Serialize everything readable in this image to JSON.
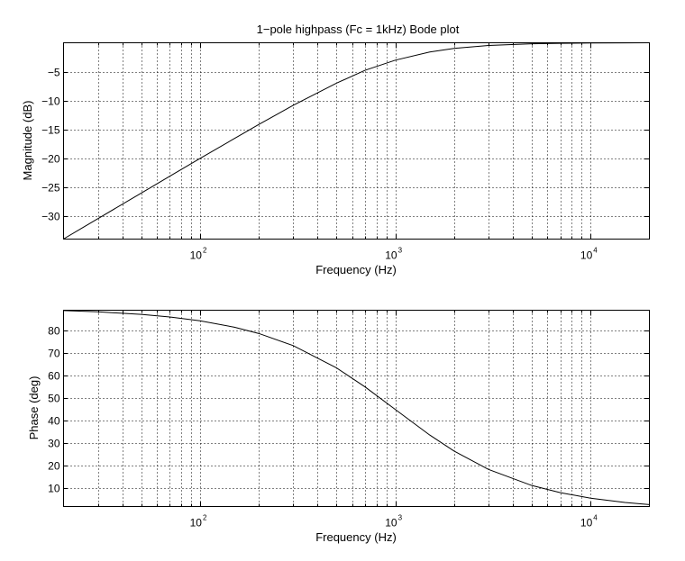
{
  "chart_data": [
    {
      "type": "line",
      "title": "1−pole highpass (Fc = 1kHz) Bode plot",
      "xlabel": "Frequency (Hz)",
      "ylabel": "Magnitude (dB)",
      "xscale": "log",
      "xlim": [
        20,
        20000
      ],
      "ylim": [
        -34,
        0
      ],
      "grid": true,
      "x_ticks": [
        {
          "value": 100,
          "base": "10",
          "exp": "2"
        },
        {
          "value": 1000,
          "base": "10",
          "exp": "3"
        },
        {
          "value": 10000,
          "base": "10",
          "exp": "4"
        }
      ],
      "y_ticks": [
        {
          "value": -5,
          "label": "−5"
        },
        {
          "value": -10,
          "label": "−10"
        },
        {
          "value": -15,
          "label": "−15"
        },
        {
          "value": -20,
          "label": "−20"
        },
        {
          "value": -25,
          "label": "−25"
        },
        {
          "value": -30,
          "label": "−30"
        }
      ],
      "series": [
        {
          "x": [
            20,
            30,
            50,
            70,
            100,
            150,
            200,
            300,
            500,
            700,
            1000,
            1500,
            2000,
            3000,
            5000,
            7000,
            10000,
            15000,
            20000
          ],
          "y": [
            -33.98,
            -30.46,
            -26.03,
            -23.11,
            -20.04,
            -16.58,
            -14.15,
            -10.83,
            -6.99,
            -4.77,
            -3.01,
            -1.6,
            -0.97,
            -0.46,
            -0.17,
            -0.09,
            -0.04,
            -0.02,
            -0.01
          ]
        }
      ]
    },
    {
      "type": "line",
      "title": "",
      "xlabel": "Frequency (Hz)",
      "ylabel": "Phase (deg)",
      "xscale": "log",
      "xlim": [
        20,
        20000
      ],
      "ylim": [
        2,
        89
      ],
      "grid": true,
      "x_ticks": [
        {
          "value": 100,
          "base": "10",
          "exp": "2"
        },
        {
          "value": 1000,
          "base": "10",
          "exp": "3"
        },
        {
          "value": 10000,
          "base": "10",
          "exp": "4"
        }
      ],
      "y_ticks": [
        {
          "value": 10,
          "label": "10"
        },
        {
          "value": 20,
          "label": "20"
        },
        {
          "value": 30,
          "label": "30"
        },
        {
          "value": 40,
          "label": "40"
        },
        {
          "value": 50,
          "label": "50"
        },
        {
          "value": 60,
          "label": "60"
        },
        {
          "value": 70,
          "label": "70"
        },
        {
          "value": 80,
          "label": "80"
        }
      ],
      "series": [
        {
          "x": [
            20,
            30,
            50,
            70,
            100,
            150,
            200,
            300,
            500,
            700,
            1000,
            1500,
            2000,
            3000,
            5000,
            7000,
            10000,
            15000,
            20000
          ],
          "y": [
            88.85,
            88.28,
            87.14,
            86.0,
            84.29,
            81.47,
            78.69,
            73.3,
            63.43,
            55.01,
            45.0,
            33.69,
            26.57,
            18.43,
            11.31,
            8.13,
            5.71,
            3.81,
            2.86
          ]
        }
      ]
    }
  ]
}
